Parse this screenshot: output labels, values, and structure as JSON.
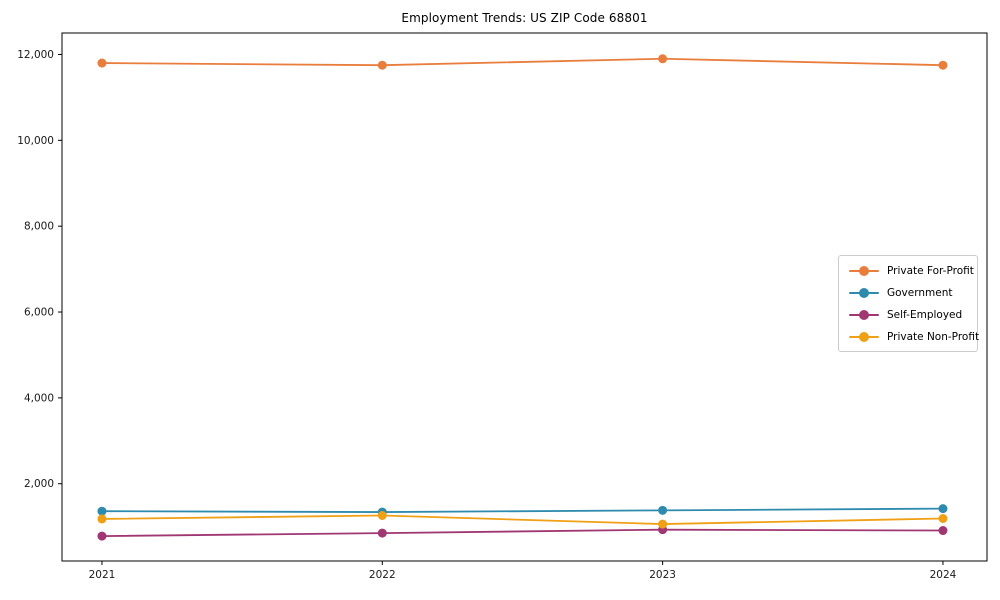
{
  "chart_data": {
    "type": "line",
    "title": "Employment Trends: US ZIP Code 68801",
    "xlabel": "",
    "ylabel": "",
    "categories": [
      "2021",
      "2022",
      "2023",
      "2024"
    ],
    "series": [
      {
        "name": "Private For-Profit",
        "color": "#E87D3C",
        "values": [
          11800,
          11750,
          11900,
          11750
        ]
      },
      {
        "name": "Government",
        "color": "#2F8BAD",
        "values": [
          1360,
          1340,
          1380,
          1420
        ]
      },
      {
        "name": "Self-Employed",
        "color": "#A03773",
        "values": [
          780,
          850,
          930,
          910
        ]
      },
      {
        "name": "Private Non-Profit",
        "color": "#F0A015",
        "values": [
          1180,
          1260,
          1060,
          1190
        ]
      }
    ],
    "yticks": [
      {
        "value": 2000,
        "label": "2,000"
      },
      {
        "value": 4000,
        "label": "4,000"
      },
      {
        "value": 6000,
        "label": "6,000"
      },
      {
        "value": 8000,
        "label": "8,000"
      },
      {
        "value": 10000,
        "label": "10,000"
      },
      {
        "value": 12000,
        "label": "12,000"
      }
    ],
    "ylim": [
      200,
      12500
    ],
    "grid": false,
    "legend_position": "center-right",
    "axis_color": "#000000",
    "tick_label_color": "#1a1a1a",
    "background": "#ffffff"
  }
}
